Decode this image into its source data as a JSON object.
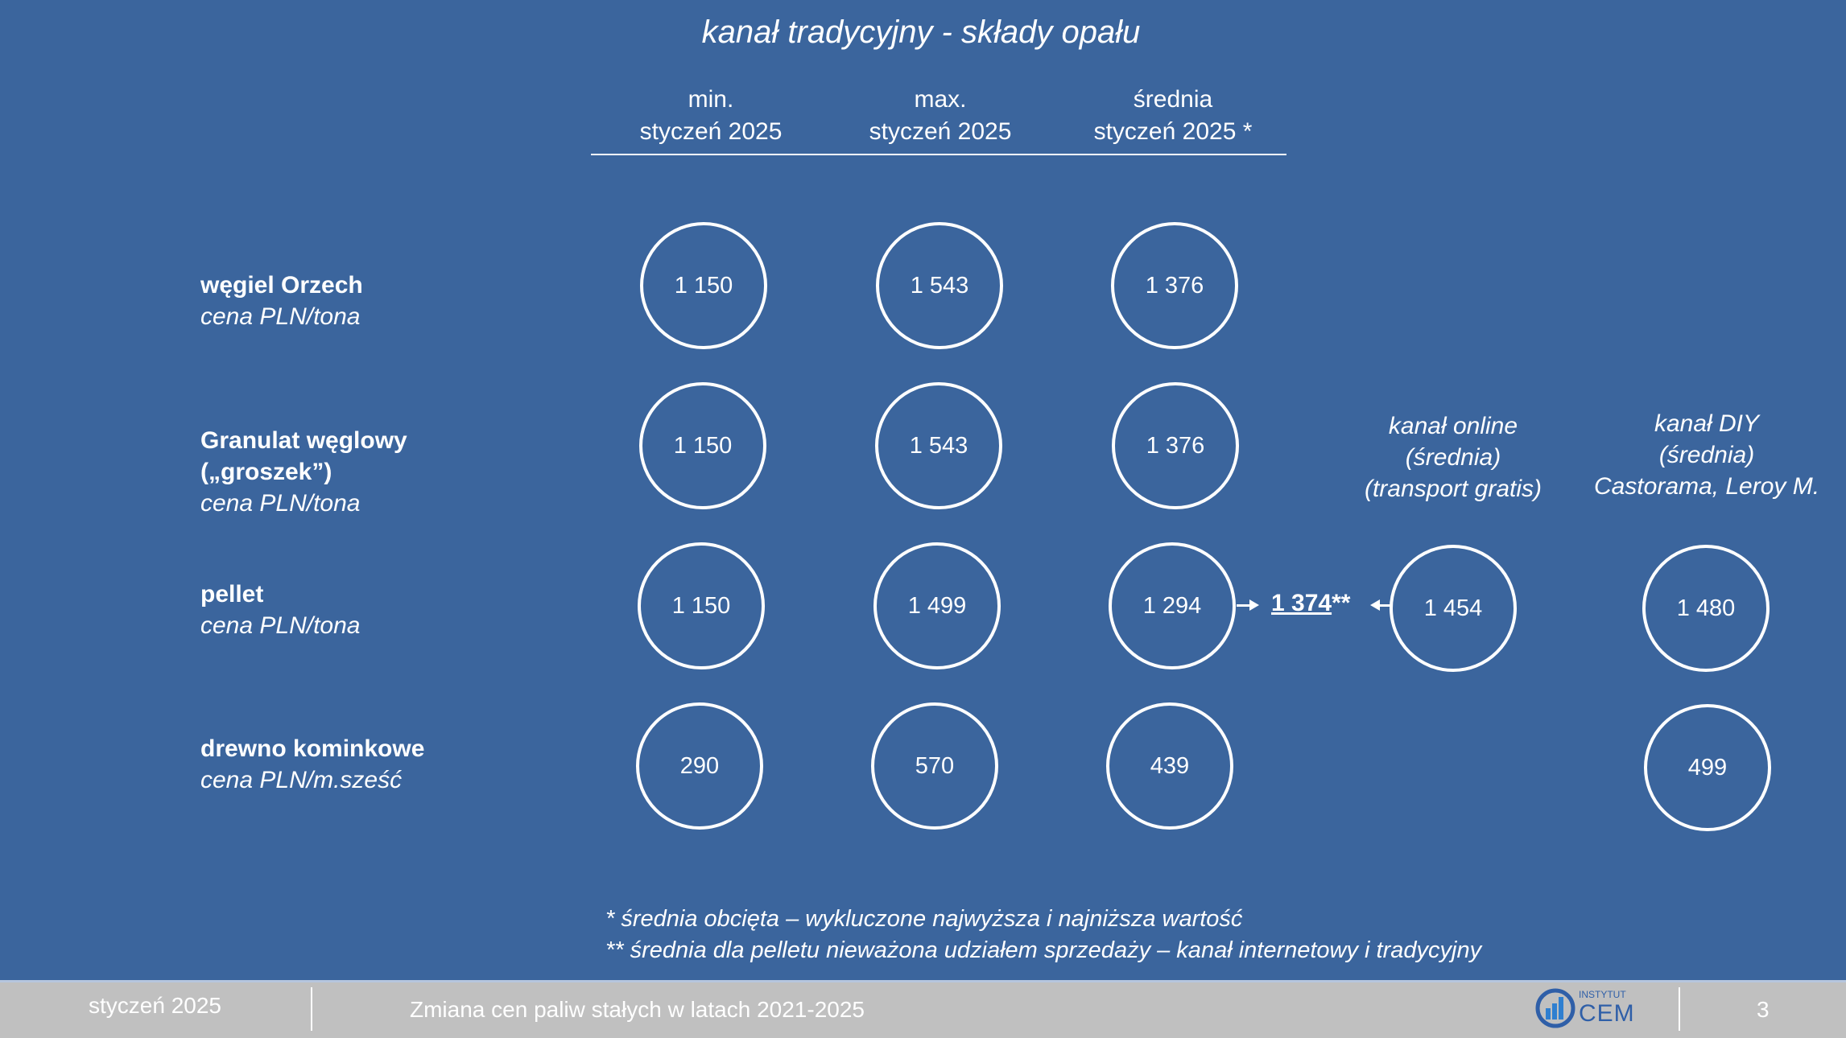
{
  "title": "kanał tradycyjny - składy opału",
  "headers": [
    [
      "min.",
      "styczeń 2025"
    ],
    [
      "max.",
      "styczeń 2025"
    ],
    [
      "średnia",
      "styczeń 2025 *"
    ]
  ],
  "rows": [
    {
      "name": "węgiel Orzech",
      "name2": "",
      "unit": "cena PLN/tona",
      "values": [
        "1 150",
        "1 543",
        "1 376"
      ]
    },
    {
      "name": "Granulat węglowy",
      "name2": "(„groszek”)",
      "unit": "cena PLN/tona",
      "values": [
        "1 150",
        "1 543",
        "1 376"
      ]
    },
    {
      "name": "pellet",
      "name2": "",
      "unit": "cena PLN/tona",
      "values": [
        "1 150",
        "1 499",
        "1 294"
      ]
    },
    {
      "name": "drewno kominkowe",
      "name2": "",
      "unit": "cena PLN/m.sześć",
      "values": [
        "290",
        "570",
        "439"
      ]
    }
  ],
  "online": {
    "lines": [
      "kanał online",
      "(średnia)",
      "(transport gratis)"
    ],
    "pellet": "1 454"
  },
  "diy": {
    "lines": [
      "kanał DIY",
      "(średnia)",
      "Castorama, Leroy M."
    ],
    "pellet": "1 480",
    "drewno": "499"
  },
  "pellet_avg": {
    "value": "1 374",
    "suffix": "**"
  },
  "footnotes": [
    "* średnia obcięta – wykluczone najwyższa i najniższa wartość",
    "** średnia dla pelletu nieważona udziałem sprzedaży – kanał internetowy i tradycyjny"
  ],
  "footer": {
    "date": "styczeń 2025",
    "subject": "Zmiana cen paliw stałych w latach 2021-2025",
    "logo": "INSTYTUT CEM",
    "page": "3"
  }
}
